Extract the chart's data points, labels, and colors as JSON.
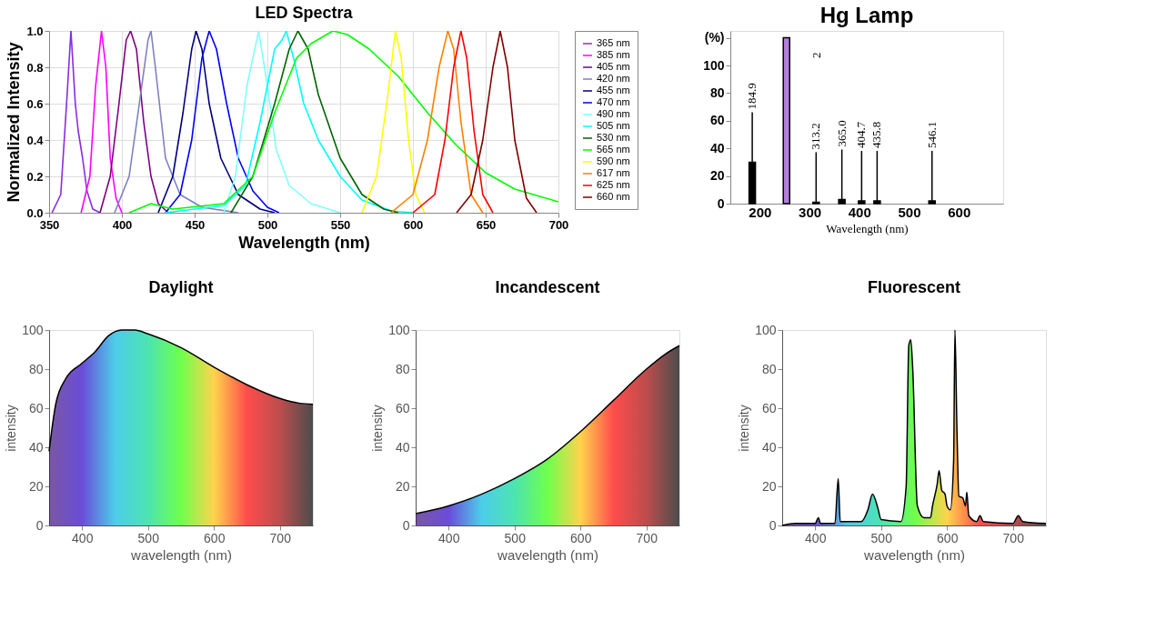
{
  "chart_data": [
    {
      "type": "line",
      "title": "LED Spectra",
      "xlabel": "Wavelength (nm)",
      "ylabel": "Normalized Intensity",
      "xlim": [
        350,
        700
      ],
      "xticks": [
        350,
        400,
        450,
        500,
        550,
        600,
        650,
        700
      ],
      "ylim": [
        0,
        1
      ],
      "yticks": [
        {
          "value": 0,
          "label": "0.0"
        },
        0.2,
        0.4,
        0.6,
        0.8,
        {
          "value": 1,
          "label": "1.0"
        }
      ],
      "grid": true,
      "legend": "right",
      "marker": "none",
      "line_style": "solid",
      "series": [
        {
          "name": "365 nm",
          "color": "#8a2be2",
          "x": [
            352,
            358,
            362,
            365,
            368,
            370,
            373,
            376,
            380,
            385
          ],
          "values": [
            0,
            0.1,
            0.6,
            1.0,
            0.6,
            0.45,
            0.3,
            0.12,
            0.02,
            0
          ]
        },
        {
          "name": "385 nm",
          "color": "#ff00ff",
          "x": [
            372,
            378,
            382,
            386,
            389,
            392,
            396,
            400
          ],
          "values": [
            0,
            0.2,
            0.7,
            1.0,
            0.8,
            0.3,
            0.08,
            0
          ]
        },
        {
          "name": "405 nm",
          "color": "#800080",
          "x": [
            385,
            392,
            398,
            403,
            406,
            410,
            415,
            420,
            425,
            432
          ],
          "values": [
            0,
            0.2,
            0.6,
            0.95,
            1.0,
            0.9,
            0.5,
            0.2,
            0.05,
            0
          ]
        },
        {
          "name": "420 nm",
          "color": "#8080c0",
          "x": [
            395,
            405,
            412,
            418,
            420,
            423,
            430,
            440,
            455,
            480
          ],
          "values": [
            0,
            0.2,
            0.6,
            0.95,
            1.0,
            0.8,
            0.3,
            0.1,
            0.03,
            0
          ]
        },
        {
          "name": "455 nm",
          "color": "#000080",
          "x": [
            425,
            435,
            442,
            448,
            451,
            455,
            460,
            468,
            480,
            495,
            505
          ],
          "values": [
            0,
            0.2,
            0.55,
            0.9,
            1.0,
            0.9,
            0.6,
            0.3,
            0.1,
            0.02,
            0
          ]
        },
        {
          "name": "470 nm",
          "color": "#0000ff",
          "x": [
            430,
            440,
            448,
            455,
            460,
            465,
            472,
            480,
            490,
            500,
            508
          ],
          "values": [
            0,
            0.1,
            0.4,
            0.85,
            1.0,
            0.9,
            0.6,
            0.3,
            0.12,
            0.03,
            0
          ]
        },
        {
          "name": "490 nm",
          "color": "#80ffff",
          "x": [
            470,
            478,
            486,
            494,
            500,
            506,
            515,
            530,
            550
          ],
          "values": [
            0,
            0.2,
            0.7,
            1.0,
            0.7,
            0.35,
            0.15,
            0.05,
            0
          ]
        },
        {
          "name": "505 nm",
          "color": "#00ffff",
          "x": [
            430,
            470,
            485,
            495,
            505,
            510,
            513,
            518,
            525,
            535,
            550,
            565,
            585,
            600
          ],
          "values": [
            0,
            0.04,
            0.15,
            0.5,
            0.9,
            0.95,
            1.0,
            0.85,
            0.6,
            0.4,
            0.2,
            0.07,
            0.01,
            0
          ]
        },
        {
          "name": "530 nm",
          "color": "#006400",
          "x": [
            475,
            490,
            505,
            515,
            521,
            528,
            535,
            550,
            565,
            580,
            590
          ],
          "values": [
            0,
            0.2,
            0.6,
            0.9,
            1.0,
            0.9,
            0.65,
            0.3,
            0.1,
            0.02,
            0
          ]
        },
        {
          "name": "565 nm",
          "color": "#00ff00",
          "x": [
            405,
            420,
            435,
            470,
            490,
            505,
            520,
            530,
            545,
            555,
            570,
            590,
            610,
            630,
            650,
            670,
            700
          ],
          "values": [
            0,
            0.05,
            0.02,
            0.05,
            0.2,
            0.55,
            0.85,
            0.93,
            1.0,
            0.98,
            0.9,
            0.75,
            0.55,
            0.37,
            0.22,
            0.13,
            0.06
          ]
        },
        {
          "name": "590 nm",
          "color": "#ffff00",
          "x": [
            565,
            575,
            582,
            588,
            592,
            597,
            602,
            608
          ],
          "values": [
            0,
            0.2,
            0.6,
            1.0,
            0.85,
            0.4,
            0.1,
            0
          ]
        },
        {
          "name": "617 nm",
          "color": "#ff8000",
          "x": [
            585,
            600,
            610,
            618,
            624,
            628,
            633,
            640,
            648
          ],
          "values": [
            0,
            0.1,
            0.4,
            0.8,
            1.0,
            0.9,
            0.5,
            0.1,
            0
          ]
        },
        {
          "name": "625 nm",
          "color": "#ff0000",
          "x": [
            600,
            615,
            622,
            628,
            633,
            637,
            642,
            648,
            655
          ],
          "values": [
            0,
            0.1,
            0.4,
            0.8,
            1.0,
            0.85,
            0.45,
            0.1,
            0
          ]
        },
        {
          "name": "660 nm",
          "color": "#800000",
          "x": [
            630,
            640,
            648,
            655,
            660,
            665,
            670,
            678,
            685
          ],
          "values": [
            0,
            0.1,
            0.4,
            0.8,
            1.0,
            0.8,
            0.4,
            0.08,
            0
          ]
        }
      ]
    },
    {
      "type": "bar",
      "title": "Hg Lamp",
      "xlabel": "Wavelength (nm)",
      "xlim": [
        150,
        680
      ],
      "xticks": [
        200,
        300,
        400,
        500,
        600
      ],
      "ylim": [
        0,
        125
      ],
      "yticks": [
        0,
        20,
        40,
        60,
        80,
        100,
        {
          "value": 120,
          "label": "(%)"
        }
      ],
      "grid": false,
      "x": [
        184.9,
        253.7,
        313.2,
        365.0,
        404.7,
        435.8,
        546.1
      ],
      "values": [
        30,
        120,
        1,
        3,
        2,
        2,
        2
      ],
      "colors": [
        "#000000",
        "#b57edc",
        "#000000",
        "#000000",
        "#000000",
        "#000000",
        "#000000"
      ],
      "annotations": [
        {
          "text": "184.9",
          "x": 184.9,
          "y": 30
        },
        "2",
        {
          "text": "313.2",
          "x": 313.2,
          "y": 1
        },
        {
          "text": "365.0",
          "x": 365.0,
          "y": 3
        },
        {
          "text": "404.7",
          "x": 404.7,
          "y": 2
        },
        {
          "text": "435.8",
          "x": 435.8,
          "y": 2
        },
        {
          "text": "546.1",
          "x": 546.1,
          "y": 2
        }
      ]
    },
    {
      "type": "area",
      "title": "Daylight",
      "xlabel": "wavelength (nm)",
      "ylabel": "intensity",
      "xlim": [
        350,
        750
      ],
      "xticks": [
        400,
        500,
        600,
        700
      ],
      "ylim": [
        0,
        100
      ],
      "yticks": [
        0,
        20,
        40,
        60,
        80,
        100
      ],
      "grid": false,
      "colors": [
        "#40107a",
        "#2a00c8",
        "#00b8e0",
        "#00d890",
        "#30ff00",
        "#ffc000",
        "#ff0000",
        "#a00000",
        "#000000"
      ],
      "x": [
        350,
        360,
        375,
        400,
        420,
        440,
        460,
        480,
        500,
        550,
        600,
        650,
        700,
        730,
        750
      ],
      "series": [
        {
          "color": "#000000",
          "values": [
            38,
            62,
            75,
            83,
            89,
            97,
            100,
            100,
            98,
            91,
            81,
            72,
            65,
            62.5,
            62
          ]
        }
      ]
    },
    {
      "type": "area",
      "title": "Incandescent",
      "xlabel": "wavelength (nm)",
      "ylabel": "intensity",
      "xlim": [
        350,
        750
      ],
      "xticks": [
        400,
        500,
        600,
        700
      ],
      "ylim": [
        0,
        100
      ],
      "yticks": [
        0,
        20,
        40,
        60,
        80,
        100
      ],
      "grid": false,
      "colors": [
        "#40107a",
        "#2a00c8",
        "#00b8e0",
        "#00d890",
        "#30ff00",
        "#ffc000",
        "#ff0000",
        "#a00000",
        "#000000"
      ],
      "x": [
        350,
        400,
        450,
        500,
        550,
        600,
        650,
        700,
        730,
        750
      ],
      "series": [
        {
          "color": "#000000",
          "values": [
            6,
            10,
            16,
            24,
            34,
            48,
            64,
            80,
            88,
            92
          ]
        }
      ]
    },
    {
      "type": "area",
      "title": "Fluorescent",
      "xlabel": "wavelength (nm)",
      "ylabel": "intensity",
      "xlim": [
        350,
        750
      ],
      "xticks": [
        400,
        500,
        600,
        700
      ],
      "ylim": [
        0,
        100
      ],
      "yticks": [
        0,
        20,
        40,
        60,
        80,
        100
      ],
      "grid": false,
      "colors": [
        "#40107a",
        "#2a00c8",
        "#00b8e0",
        "#00d890",
        "#30ff00",
        "#ffc000",
        "#ff0000",
        "#a00000",
        "#000000"
      ],
      "x": [
        350,
        370,
        400,
        405,
        408,
        430,
        435,
        438,
        470,
        480,
        487,
        495,
        500,
        530,
        538,
        542,
        545,
        548,
        555,
        565,
        575,
        578,
        585,
        588,
        592,
        597,
        600,
        605,
        610,
        612,
        615,
        618,
        624,
        628,
        630,
        633,
        645,
        650,
        655,
        700,
        708,
        715,
        750
      ],
      "series": [
        {
          "color": "#000000",
          "values": [
            0,
            1,
            1,
            4,
            1,
            1,
            24,
            2,
            2,
            8,
            16,
            9,
            3,
            2,
            20,
            92,
            95,
            80,
            10,
            4,
            4,
            10,
            21,
            28,
            18,
            16,
            10,
            8,
            33,
            100,
            50,
            15,
            14,
            10,
            17,
            5,
            2,
            5,
            2,
            1,
            5,
            2,
            1
          ]
        }
      ]
    }
  ]
}
